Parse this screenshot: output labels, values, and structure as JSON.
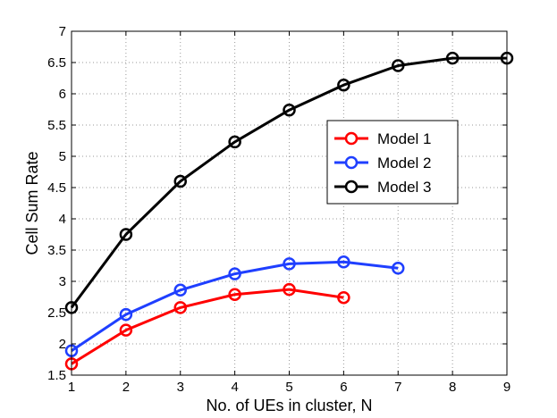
{
  "chart_data": {
    "type": "line",
    "title": "",
    "xlabel": "No. of UEs in cluster, N",
    "ylabel": "Cell Sum Rate",
    "xlim": [
      1,
      9
    ],
    "ylim": [
      1.5,
      7
    ],
    "xticks": [
      1,
      2,
      3,
      4,
      5,
      6,
      7,
      8,
      9
    ],
    "yticks": [
      1.5,
      2,
      2.5,
      3,
      3.5,
      4,
      4.5,
      5,
      5.5,
      6,
      6.5,
      7
    ],
    "xtick_labels": [
      "1",
      "2",
      "3",
      "4",
      "5",
      "6",
      "7",
      "8",
      "9"
    ],
    "ytick_labels": [
      "1.5",
      "2",
      "2.5",
      "3",
      "3.5",
      "4",
      "4.5",
      "5",
      "5.5",
      "6",
      "6.5",
      "7"
    ],
    "grid": true,
    "legend_position": "right-center",
    "series": [
      {
        "name": "Model 1",
        "color": "#ff0000",
        "marker": "circle",
        "x": [
          1,
          2,
          3,
          4,
          5,
          6
        ],
        "y": [
          1.68,
          2.22,
          2.58,
          2.79,
          2.87,
          2.74
        ]
      },
      {
        "name": "Model 2",
        "color": "#1f3fff",
        "marker": "circle",
        "x": [
          1,
          2,
          3,
          4,
          5,
          6,
          7
        ],
        "y": [
          1.89,
          2.47,
          2.86,
          3.12,
          3.28,
          3.31,
          3.21
        ]
      },
      {
        "name": "Model 3",
        "color": "#000000",
        "marker": "circle",
        "x": [
          1,
          2,
          3,
          4,
          5,
          6,
          7,
          8,
          9
        ],
        "y": [
          2.58,
          3.75,
          4.6,
          5.23,
          5.74,
          6.14,
          6.45,
          6.57,
          6.57
        ]
      }
    ]
  }
}
